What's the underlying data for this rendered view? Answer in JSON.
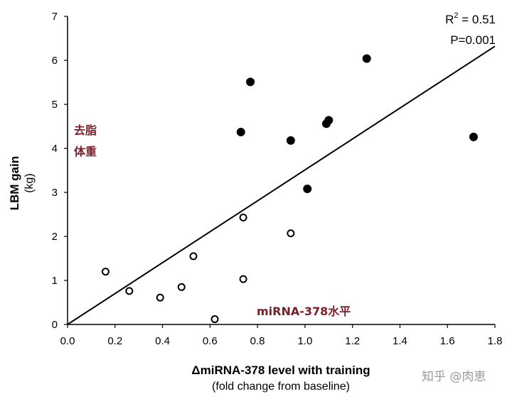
{
  "chart_data": {
    "type": "scatter",
    "xlabel": "ΔmiRNA-378 level with training",
    "xlabel_sub": "(fold change from baseline)",
    "ylabel": "LBM gain",
    "ylabel_sub": "(kg)",
    "xlim": [
      0.0,
      1.8
    ],
    "ylim": [
      0,
      7
    ],
    "xticks": [
      "0.0",
      "0.2",
      "0.4",
      "0.6",
      "0.8",
      "1.0",
      "1.2",
      "1.4",
      "1.6",
      "1.8"
    ],
    "yticks": [
      "0",
      "1",
      "2",
      "3",
      "4",
      "5",
      "6",
      "7"
    ],
    "grid": false,
    "series": [
      {
        "marker": "filled-circle",
        "color": "#000000",
        "points": [
          {
            "x": 0.73,
            "y": 4.37
          },
          {
            "x": 0.77,
            "y": 5.51
          },
          {
            "x": 0.94,
            "y": 4.18
          },
          {
            "x": 1.01,
            "y": 3.08
          },
          {
            "x": 1.09,
            "y": 4.56
          },
          {
            "x": 1.1,
            "y": 4.64
          },
          {
            "x": 1.26,
            "y": 6.04
          },
          {
            "x": 1.71,
            "y": 4.26
          }
        ]
      },
      {
        "marker": "open-circle",
        "color": "#000000",
        "points": [
          {
            "x": 0.16,
            "y": 1.2
          },
          {
            "x": 0.26,
            "y": 0.76
          },
          {
            "x": 0.39,
            "y": 0.61
          },
          {
            "x": 0.48,
            "y": 0.85
          },
          {
            "x": 0.53,
            "y": 1.55
          },
          {
            "x": 0.62,
            "y": 0.12
          },
          {
            "x": 0.74,
            "y": 2.43
          },
          {
            "x": 0.74,
            "y": 1.03
          },
          {
            "x": 0.94,
            "y": 2.07
          }
        ]
      }
    ],
    "regression_line": {
      "x": [
        0.0,
        1.8
      ],
      "y": [
        0.0,
        6.32
      ]
    },
    "stats": {
      "r2_label": "R",
      "r2_sup": "2",
      "r2_value": " = 0.51",
      "p": "P=0.001"
    },
    "annotations": {
      "left_line1": "去脂",
      "left_line2": "体重",
      "bottom": "miRNA-378水平"
    }
  },
  "watermark": "知乎 @肉恵"
}
